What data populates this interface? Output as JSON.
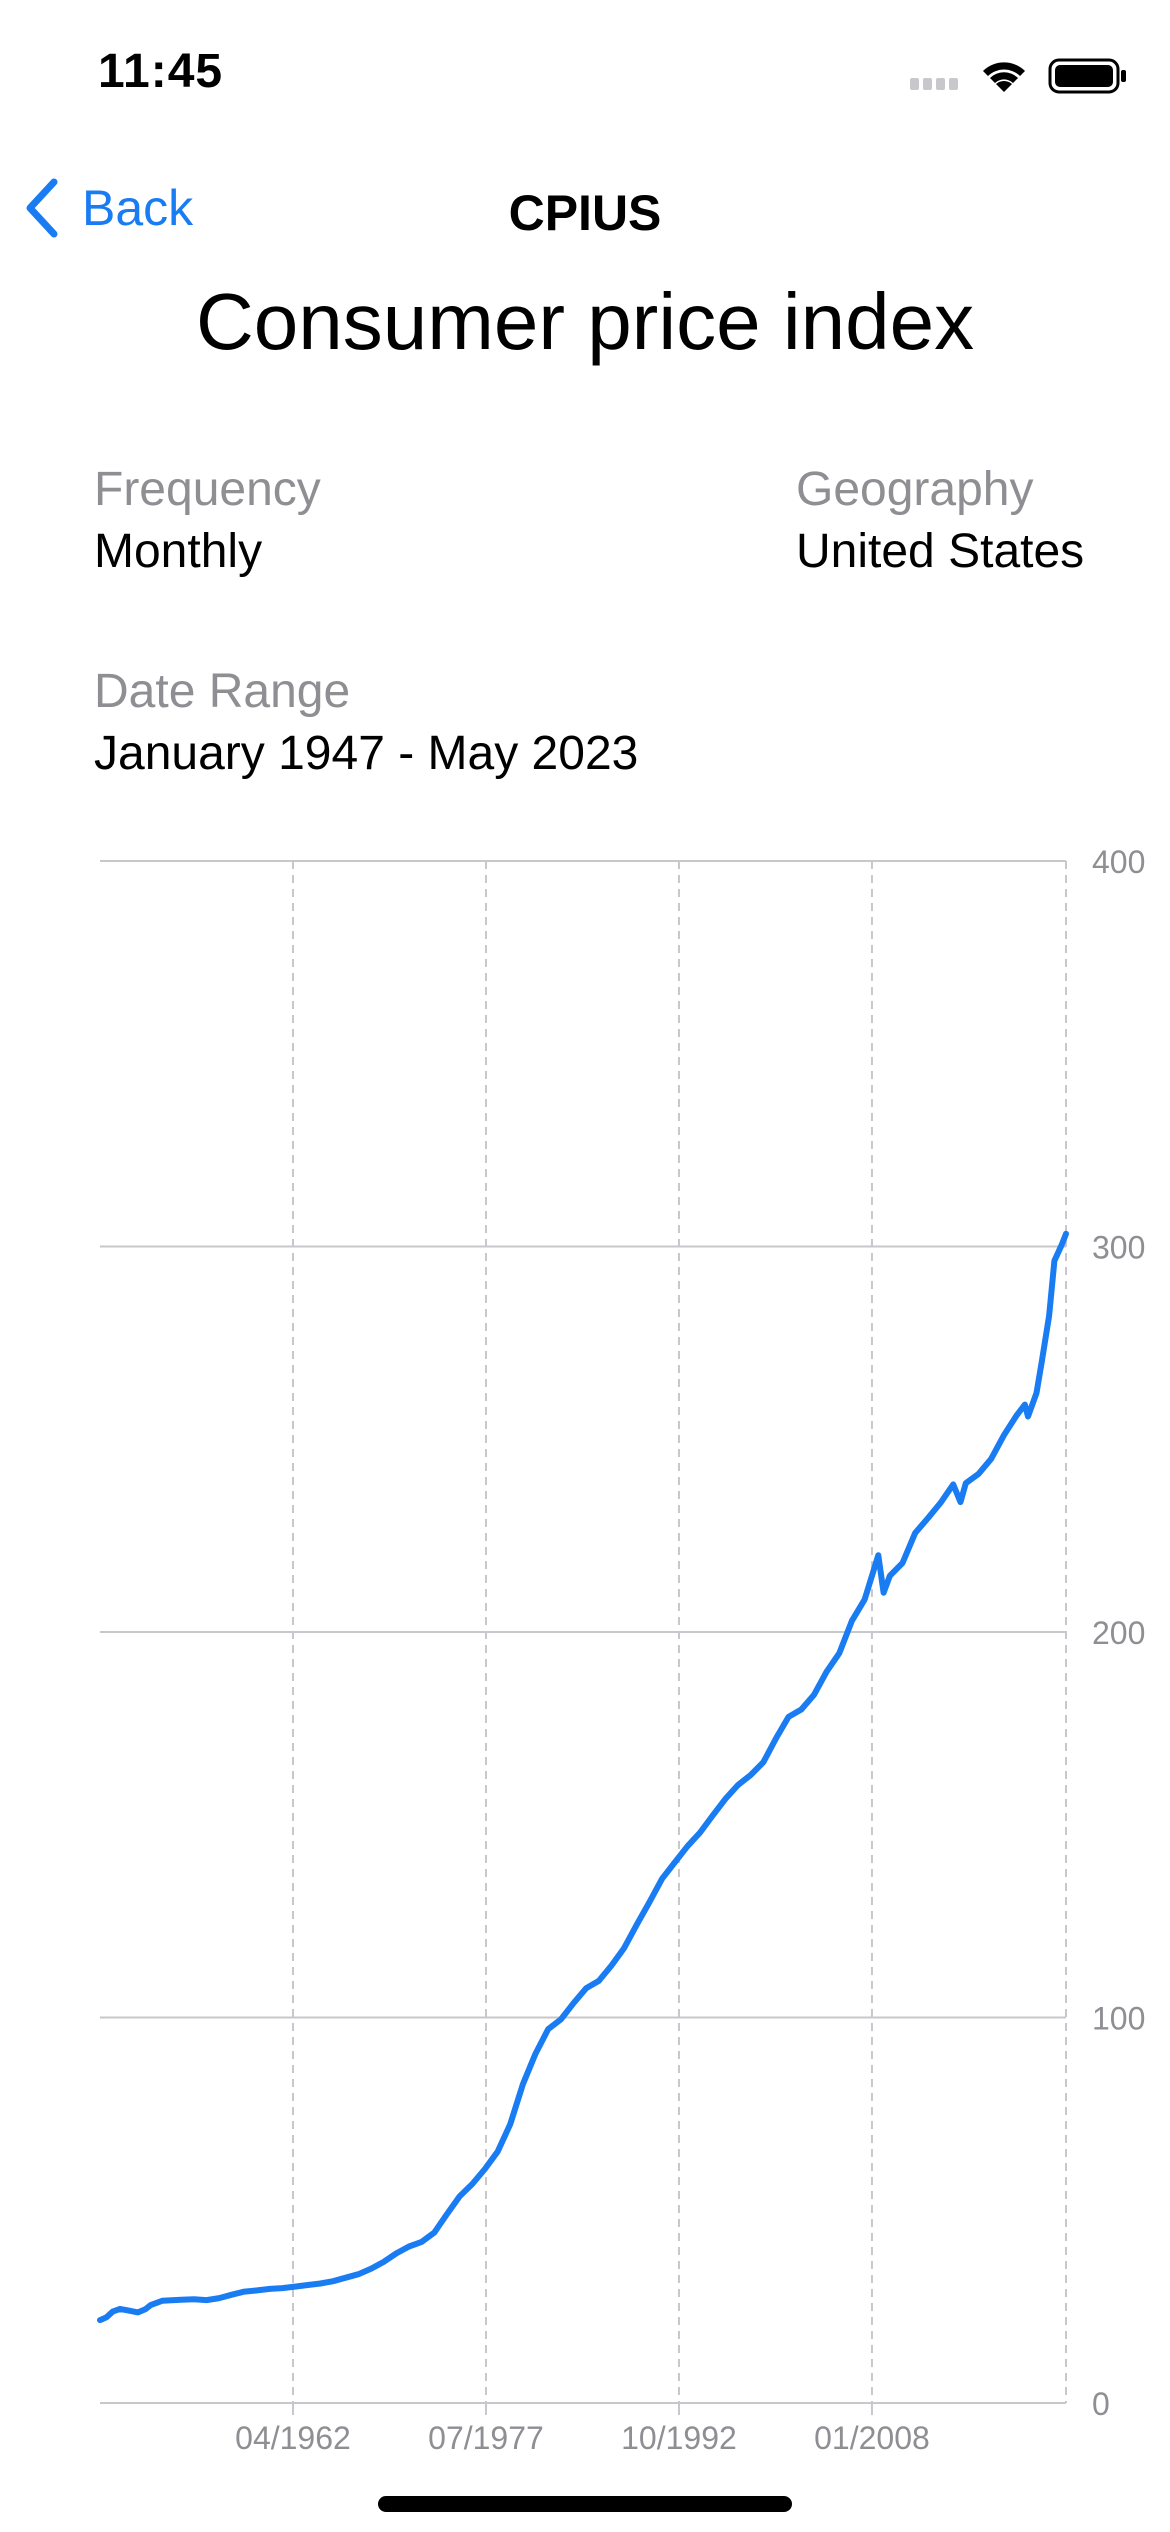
{
  "status_bar": {
    "time": "11:45",
    "icons": [
      "cellular-signal-icon",
      "wifi-icon",
      "battery-icon"
    ]
  },
  "nav": {
    "back_label": "Back",
    "title": "CPIUS"
  },
  "page": {
    "title": "Consumer price index",
    "frequency_label": "Frequency",
    "frequency_value": "Monthly",
    "geography_label": "Geography",
    "geography_value": "United States",
    "date_range_label": "Date Range",
    "date_range_value": "January 1947 - May 2023"
  },
  "colors": {
    "accent": "#1a7cf2",
    "line": "#1a7cf2",
    "secondary_text": "#8e8e93",
    "grid": "#c7c7cc"
  },
  "chart_data": {
    "type": "line",
    "title": "",
    "xlabel": "",
    "ylabel": "",
    "ylim": [
      0,
      400
    ],
    "yticks": [
      0,
      100,
      200,
      300,
      400
    ],
    "xlim": [
      "1947-01",
      "2023-05"
    ],
    "xticks": [
      {
        "date": "1962-04",
        "label": "04/1962"
      },
      {
        "date": "1977-07",
        "label": "07/1977"
      },
      {
        "date": "1992-10",
        "label": "10/1992"
      },
      {
        "date": "2008-01",
        "label": "01/2008"
      }
    ],
    "grid": true,
    "legend": "none",
    "series": [
      {
        "color": "#1a7cf2",
        "points": [
          [
            "1947-01",
            21.5
          ],
          [
            "1947-07",
            22.2
          ],
          [
            "1948-01",
            23.7
          ],
          [
            "1948-08",
            24.4
          ],
          [
            "1949-06",
            23.9
          ],
          [
            "1950-01",
            23.5
          ],
          [
            "1950-08",
            24.3
          ],
          [
            "1951-01",
            25.4
          ],
          [
            "1951-12",
            26.5
          ],
          [
            "1953-06",
            26.8
          ],
          [
            "1954-06",
            26.9
          ],
          [
            "1955-06",
            26.7
          ],
          [
            "1956-06",
            27.2
          ],
          [
            "1957-06",
            28.1
          ],
          [
            "1958-06",
            28.9
          ],
          [
            "1959-06",
            29.2
          ],
          [
            "1960-06",
            29.6
          ],
          [
            "1961-06",
            29.8
          ],
          [
            "1962-06",
            30.2
          ],
          [
            "1963-06",
            30.6
          ],
          [
            "1964-06",
            31.0
          ],
          [
            "1965-06",
            31.6
          ],
          [
            "1966-06",
            32.5
          ],
          [
            "1967-06",
            33.4
          ],
          [
            "1968-06",
            34.8
          ],
          [
            "1969-06",
            36.6
          ],
          [
            "1970-06",
            38.8
          ],
          [
            "1971-06",
            40.6
          ],
          [
            "1972-06",
            41.8
          ],
          [
            "1973-06",
            44.2
          ],
          [
            "1974-06",
            49.0
          ],
          [
            "1975-06",
            53.6
          ],
          [
            "1976-06",
            56.8
          ],
          [
            "1977-06",
            60.7
          ],
          [
            "1978-06",
            65.2
          ],
          [
            "1979-06",
            72.3
          ],
          [
            "1980-06",
            82.7
          ],
          [
            "1981-06",
            90.6
          ],
          [
            "1982-06",
            97.0
          ],
          [
            "1983-06",
            99.5
          ],
          [
            "1984-06",
            103.7
          ],
          [
            "1985-06",
            107.6
          ],
          [
            "1986-06",
            109.5
          ],
          [
            "1987-06",
            113.5
          ],
          [
            "1988-06",
            118.0
          ],
          [
            "1989-06",
            124.1
          ],
          [
            "1990-06",
            129.9
          ],
          [
            "1991-06",
            136.0
          ],
          [
            "1992-06",
            140.2
          ],
          [
            "1993-06",
            144.4
          ],
          [
            "1994-06",
            148.0
          ],
          [
            "1995-06",
            152.4
          ],
          [
            "1996-06",
            156.7
          ],
          [
            "1997-06",
            160.3
          ],
          [
            "1998-06",
            162.9
          ],
          [
            "1999-06",
            166.2
          ],
          [
            "2000-06",
            172.4
          ],
          [
            "2001-06",
            178.0
          ],
          [
            "2002-06",
            179.9
          ],
          [
            "2003-06",
            183.7
          ],
          [
            "2004-06",
            189.7
          ],
          [
            "2005-06",
            194.5
          ],
          [
            "2006-06",
            202.9
          ],
          [
            "2007-06",
            208.4
          ],
          [
            "2008-07",
            219.9
          ],
          [
            "2008-12",
            210.2
          ],
          [
            "2009-06",
            214.6
          ],
          [
            "2010-06",
            217.9
          ],
          [
            "2011-06",
            225.7
          ],
          [
            "2012-06",
            229.5
          ],
          [
            "2013-06",
            233.5
          ],
          [
            "2014-06",
            238.3
          ],
          [
            "2015-01",
            233.7
          ],
          [
            "2015-06",
            238.6
          ],
          [
            "2016-06",
            241.0
          ],
          [
            "2017-06",
            244.9
          ],
          [
            "2018-06",
            251.0
          ],
          [
            "2019-06",
            256.1
          ],
          [
            "2020-02",
            259.0
          ],
          [
            "2020-05",
            255.9
          ],
          [
            "2021-01",
            262.0
          ],
          [
            "2021-06",
            270.0
          ],
          [
            "2022-01",
            282.0
          ],
          [
            "2022-06",
            296.3
          ],
          [
            "2023-01",
            300.5
          ],
          [
            "2023-05",
            303.3
          ]
        ]
      }
    ]
  }
}
